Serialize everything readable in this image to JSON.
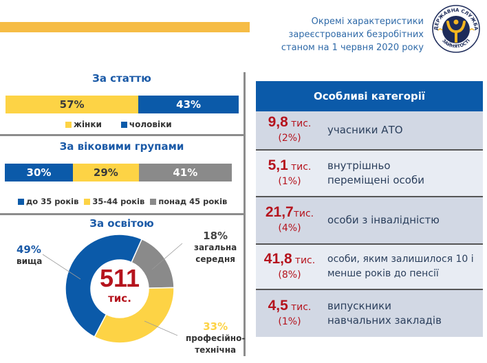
{
  "header": {
    "title_lines": [
      "Окремі характеристики",
      "зареєстрованих безробітних",
      "станом на 1 червня 2020 року"
    ],
    "logo_text_top": "ДЕРЖАВНА СЛУЖБА",
    "logo_text_bottom": "ЗАЙНЯТОСТІ"
  },
  "colors": {
    "blue": "#0b5aa9",
    "yellow": "#fdd345",
    "gray": "#8a8a8a",
    "red": "#b5131d",
    "stripe": "#f6bc45"
  },
  "chart_data": [
    {
      "type": "bar",
      "stacked": true,
      "title": "За статтю",
      "categories": [
        "жінки",
        "чоловіки"
      ],
      "values": [
        57,
        43
      ],
      "labels": [
        "57%",
        "43%"
      ],
      "legend": [
        "жінки",
        "чоловіки"
      ]
    },
    {
      "type": "bar",
      "stacked": true,
      "title": "За віковими групами",
      "categories": [
        "до 35 років",
        "35-44 років",
        "понад 45 років"
      ],
      "values": [
        30,
        29,
        41
      ],
      "labels": [
        "30%",
        "29%",
        "41%"
      ],
      "legend": [
        "до 35 років",
        "35-44 років",
        "понад 45 років"
      ]
    },
    {
      "type": "pie",
      "donut": true,
      "title": "За освітою",
      "center_value": "511",
      "center_unit": "тис.",
      "slices": [
        {
          "name": "вища",
          "value": 49,
          "label": "49%",
          "name_lines": [
            "вища"
          ]
        },
        {
          "name": "загальна середня",
          "value": 18,
          "label": "18%",
          "name_lines": [
            "загальна",
            "середня"
          ]
        },
        {
          "name": "професійно-технічна",
          "value": 33,
          "label": "33%",
          "name_lines": [
            "професійно-",
            "технічна"
          ]
        }
      ]
    }
  ],
  "categories_panel": {
    "title": "Особливі категорії",
    "rows": [
      {
        "value": "9,8",
        "unit": "тис.",
        "pct": "(2%)",
        "label": "учасники АТО"
      },
      {
        "value": "5,1",
        "unit": "тис.",
        "pct": "(1%)",
        "label": "внутрішньо переміщені особи"
      },
      {
        "value": "21,7",
        "unit": "тис.",
        "pct": "(4%)",
        "label": "особи з інвалідністю"
      },
      {
        "value": "41,8",
        "unit": "тис.",
        "pct": "(8%)",
        "label": "особи, яким залишилося 10 і менше років до пенсії"
      },
      {
        "value": "4,5",
        "unit": "тис.",
        "pct": "(1%)",
        "label": "випускники навчальних закладів"
      }
    ]
  }
}
